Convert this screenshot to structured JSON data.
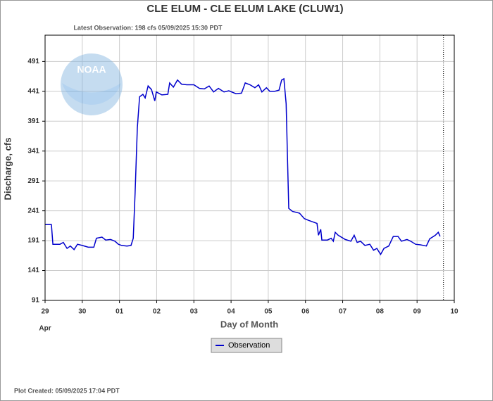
{
  "chart_data": {
    "type": "line",
    "title": "CLE ELUM - CLE ELUM LAKE  (CLUW1)",
    "subtitle": "Latest Observation: 198 cfs 05/09/2025 15:30 PDT",
    "x_label": "Day of Month",
    "x_sublabel": "Apr",
    "y_label": "Discharge, cfs",
    "footer": "Plot Created: 05/09/2025 17:04 PDT",
    "logo_text": "NOAA",
    "grid": true,
    "xlim": [
      0,
      11
    ],
    "xticks": [
      {
        "value": 0,
        "label": "29"
      },
      {
        "value": 1,
        "label": "30"
      },
      {
        "value": 2,
        "label": "01"
      },
      {
        "value": 3,
        "label": "02"
      },
      {
        "value": 4,
        "label": "03"
      },
      {
        "value": 5,
        "label": "04"
      },
      {
        "value": 6,
        "label": "05"
      },
      {
        "value": 7,
        "label": "06"
      },
      {
        "value": 8,
        "label": "07"
      },
      {
        "value": 9,
        "label": "08"
      },
      {
        "value": 10,
        "label": "09"
      },
      {
        "value": 11,
        "label": "10"
      }
    ],
    "ylim": [
      91,
      535
    ],
    "yticks": [
      91,
      141,
      191,
      241,
      291,
      341,
      391,
      441,
      491
    ],
    "now_x": 10.71,
    "x": [
      0,
      0.17,
      0.21,
      0.4,
      0.49,
      0.59,
      0.68,
      0.78,
      0.87,
      1.0,
      1.16,
      1.31,
      1.38,
      1.53,
      1.63,
      1.76,
      1.88,
      1.97,
      2.06,
      2.2,
      2.31,
      2.37,
      2.42,
      2.48,
      2.54,
      2.63,
      2.69,
      2.77,
      2.86,
      2.95,
      2.99,
      3.14,
      3.3,
      3.35,
      3.45,
      3.56,
      3.67,
      3.81,
      4.0,
      4.15,
      4.28,
      4.41,
      4.53,
      4.66,
      4.81,
      4.94,
      5.13,
      5.28,
      5.38,
      5.51,
      5.64,
      5.74,
      5.83,
      5.95,
      6.04,
      6.17,
      6.29,
      6.36,
      6.42,
      6.48,
      6.52,
      6.55,
      6.65,
      6.84,
      6.97,
      7.08,
      7.22,
      7.31,
      7.35,
      7.41,
      7.44,
      7.59,
      7.69,
      7.75,
      7.8,
      7.88,
      8.07,
      8.22,
      8.31,
      8.39,
      8.48,
      8.6,
      8.73,
      8.83,
      8.92,
      9.02,
      9.11,
      9.24,
      9.36,
      9.49,
      9.58,
      9.73,
      9.83,
      9.96,
      10.09,
      10.25,
      10.34,
      10.49,
      10.57,
      10.62
    ],
    "series": [
      {
        "name": "Observation",
        "color": "#0000cc",
        "values": [
          218,
          218,
          185,
          185,
          188,
          178,
          182,
          176,
          185,
          183,
          180,
          180,
          195,
          197,
          192,
          193,
          190,
          185,
          183,
          182,
          183,
          195,
          270,
          380,
          432,
          436,
          430,
          450,
          444,
          425,
          440,
          435,
          436,
          455,
          448,
          460,
          453,
          452,
          452,
          446,
          445,
          450,
          440,
          446,
          440,
          442,
          437,
          438,
          455,
          452,
          447,
          452,
          440,
          447,
          441,
          441,
          443,
          460,
          462,
          420,
          320,
          245,
          240,
          237,
          228,
          225,
          222,
          220,
          200,
          210,
          192,
          192,
          195,
          190,
          205,
          200,
          193,
          190,
          200,
          188,
          190,
          183,
          185,
          175,
          178,
          168,
          178,
          182,
          198,
          198,
          190,
          193,
          190,
          185,
          184,
          182,
          194,
          200,
          205,
          198
        ]
      }
    ]
  }
}
